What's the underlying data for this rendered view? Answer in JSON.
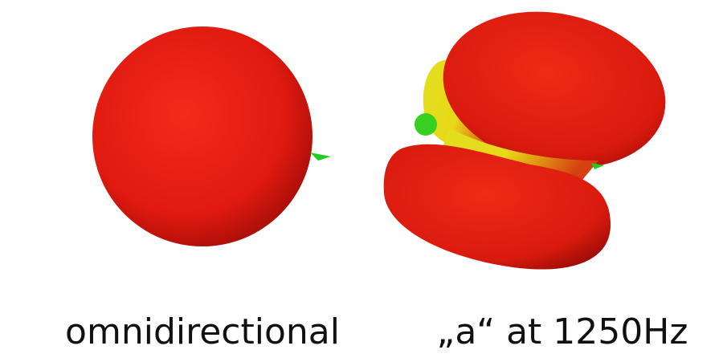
{
  "captions": {
    "left": "omnidirectional",
    "right": "„a“ at 1250Hz"
  }
}
